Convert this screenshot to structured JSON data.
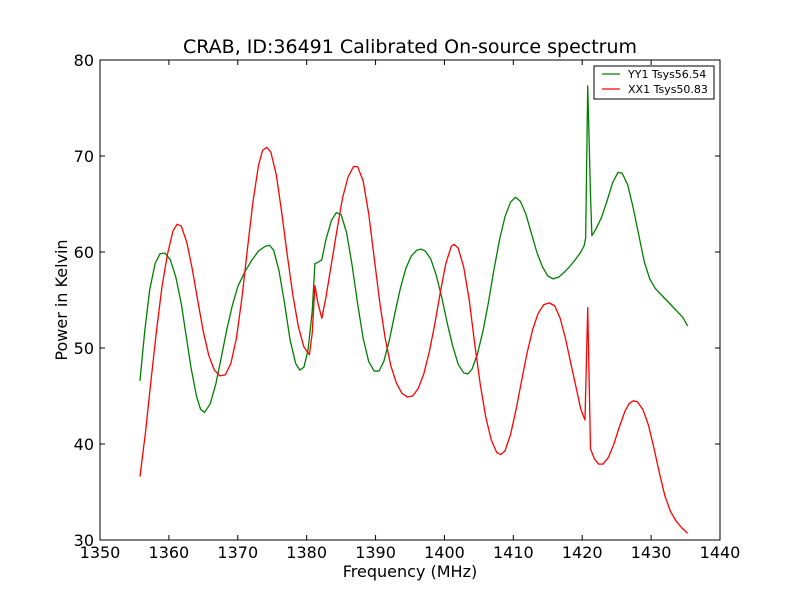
{
  "chart_data": {
    "type": "line",
    "title": "CRAB, ID:36491 Calibrated On-source spectrum",
    "xlabel": "Frequency (MHz)",
    "ylabel": "Power in Kelvin",
    "xlim": [
      1350,
      1440
    ],
    "ylim": [
      30,
      80
    ],
    "xticks": [
      1350,
      1360,
      1370,
      1380,
      1390,
      1400,
      1410,
      1420,
      1430,
      1440
    ],
    "yticks": [
      30,
      40,
      50,
      60,
      70,
      80
    ],
    "xtick_labels": [
      "1350",
      "1360",
      "1370",
      "1380",
      "1390",
      "1400",
      "1410",
      "1420",
      "1430",
      "1440"
    ],
    "ytick_labels": [
      "30",
      "40",
      "50",
      "60",
      "70",
      "80"
    ],
    "grid": false,
    "legend_position": "top-right",
    "series": [
      {
        "name": "YY1 Tsys56.54",
        "color": "#008000",
        "points": [
          [
            1355.8,
            46.6
          ],
          [
            1356.5,
            51.8
          ],
          [
            1357.2,
            56.0
          ],
          [
            1358.0,
            58.8
          ],
          [
            1358.7,
            59.8
          ],
          [
            1359.4,
            59.9
          ],
          [
            1360.2,
            59.2
          ],
          [
            1361.0,
            57.4
          ],
          [
            1361.8,
            54.6
          ],
          [
            1362.5,
            51.3
          ],
          [
            1363.2,
            48.0
          ],
          [
            1364.0,
            45.0
          ],
          [
            1364.6,
            43.6
          ],
          [
            1365.2,
            43.3
          ],
          [
            1366.0,
            44.2
          ],
          [
            1366.8,
            46.2
          ],
          [
            1367.6,
            49.0
          ],
          [
            1368.4,
            51.9
          ],
          [
            1369.2,
            54.4
          ],
          [
            1370.0,
            56.4
          ],
          [
            1371.0,
            57.9
          ],
          [
            1372.0,
            59.1
          ],
          [
            1373.0,
            60.1
          ],
          [
            1374.0,
            60.6
          ],
          [
            1374.6,
            60.7
          ],
          [
            1375.2,
            60.2
          ],
          [
            1376.0,
            58.0
          ],
          [
            1376.8,
            54.6
          ],
          [
            1377.6,
            50.8
          ],
          [
            1378.4,
            48.4
          ],
          [
            1379.0,
            47.7
          ],
          [
            1379.6,
            48.0
          ],
          [
            1380.2,
            49.8
          ],
          [
            1380.8,
            53.8
          ],
          [
            1381.2,
            58.8
          ],
          [
            1381.6,
            58.9
          ],
          [
            1382.2,
            59.2
          ],
          [
            1382.8,
            61.3
          ],
          [
            1383.6,
            63.3
          ],
          [
            1384.3,
            64.1
          ],
          [
            1385.0,
            63.9
          ],
          [
            1385.8,
            62.0
          ],
          [
            1386.6,
            58.6
          ],
          [
            1387.4,
            54.6
          ],
          [
            1388.2,
            51.0
          ],
          [
            1389.0,
            48.6
          ],
          [
            1389.8,
            47.6
          ],
          [
            1390.5,
            47.6
          ],
          [
            1391.2,
            48.6
          ],
          [
            1392.0,
            50.8
          ],
          [
            1392.8,
            53.6
          ],
          [
            1393.6,
            56.2
          ],
          [
            1394.4,
            58.3
          ],
          [
            1395.2,
            59.6
          ],
          [
            1396.0,
            60.2
          ],
          [
            1396.6,
            60.3
          ],
          [
            1397.2,
            60.1
          ],
          [
            1398.0,
            59.3
          ],
          [
            1398.8,
            57.6
          ],
          [
            1399.6,
            55.3
          ],
          [
            1400.4,
            52.6
          ],
          [
            1401.2,
            50.2
          ],
          [
            1402.0,
            48.3
          ],
          [
            1402.8,
            47.4
          ],
          [
            1403.4,
            47.3
          ],
          [
            1404.0,
            47.8
          ],
          [
            1404.8,
            49.4
          ],
          [
            1405.6,
            51.8
          ],
          [
            1406.4,
            54.8
          ],
          [
            1407.2,
            58.2
          ],
          [
            1408.0,
            61.3
          ],
          [
            1408.8,
            63.7
          ],
          [
            1409.6,
            65.2
          ],
          [
            1410.3,
            65.7
          ],
          [
            1411.0,
            65.3
          ],
          [
            1411.8,
            64.0
          ],
          [
            1412.6,
            62.0
          ],
          [
            1413.4,
            60.0
          ],
          [
            1414.2,
            58.5
          ],
          [
            1415.0,
            57.5
          ],
          [
            1415.8,
            57.2
          ],
          [
            1416.6,
            57.4
          ],
          [
            1417.4,
            57.9
          ],
          [
            1418.2,
            58.5
          ],
          [
            1419.0,
            59.2
          ],
          [
            1419.8,
            60.0
          ],
          [
            1420.3,
            60.7
          ],
          [
            1420.5,
            61.5
          ],
          [
            1420.8,
            77.3
          ],
          [
            1421.2,
            66.0
          ],
          [
            1421.4,
            61.7
          ],
          [
            1422.0,
            62.4
          ],
          [
            1422.8,
            63.6
          ],
          [
            1423.6,
            65.3
          ],
          [
            1424.4,
            67.2
          ],
          [
            1425.2,
            68.3
          ],
          [
            1425.8,
            68.2
          ],
          [
            1426.6,
            67.0
          ],
          [
            1427.4,
            64.6
          ],
          [
            1428.2,
            61.8
          ],
          [
            1429.0,
            59.0
          ],
          [
            1429.8,
            57.2
          ],
          [
            1430.6,
            56.2
          ],
          [
            1431.4,
            55.6
          ],
          [
            1432.2,
            55.0
          ],
          [
            1433.0,
            54.4
          ],
          [
            1433.8,
            53.8
          ],
          [
            1434.6,
            53.2
          ],
          [
            1435.3,
            52.3
          ]
        ]
      },
      {
        "name": "XX1 Tsys50.83",
        "color": "#ff0000",
        "points": [
          [
            1355.8,
            36.6
          ],
          [
            1356.6,
            41.2
          ],
          [
            1357.4,
            46.6
          ],
          [
            1358.2,
            51.8
          ],
          [
            1359.0,
            56.4
          ],
          [
            1359.8,
            59.8
          ],
          [
            1360.6,
            62.2
          ],
          [
            1361.2,
            62.9
          ],
          [
            1361.8,
            62.7
          ],
          [
            1362.6,
            61.0
          ],
          [
            1363.4,
            58.2
          ],
          [
            1364.2,
            54.9
          ],
          [
            1365.0,
            51.7
          ],
          [
            1365.8,
            49.2
          ],
          [
            1366.6,
            47.7
          ],
          [
            1367.4,
            47.1
          ],
          [
            1368.2,
            47.2
          ],
          [
            1369.0,
            48.4
          ],
          [
            1369.8,
            51.0
          ],
          [
            1370.6,
            55.2
          ],
          [
            1371.4,
            60.3
          ],
          [
            1372.2,
            65.2
          ],
          [
            1373.0,
            69.0
          ],
          [
            1373.6,
            70.6
          ],
          [
            1374.2,
            70.9
          ],
          [
            1374.8,
            70.4
          ],
          [
            1375.6,
            68.0
          ],
          [
            1376.4,
            64.0
          ],
          [
            1377.2,
            59.6
          ],
          [
            1378.0,
            55.5
          ],
          [
            1378.8,
            52.2
          ],
          [
            1379.6,
            50.1
          ],
          [
            1380.4,
            49.3
          ],
          [
            1380.8,
            51.5
          ],
          [
            1381.2,
            56.5
          ],
          [
            1381.6,
            54.8
          ],
          [
            1382.2,
            53.1
          ],
          [
            1382.8,
            55.3
          ],
          [
            1383.6,
            58.8
          ],
          [
            1384.4,
            62.3
          ],
          [
            1385.2,
            65.6
          ],
          [
            1386.0,
            67.8
          ],
          [
            1386.8,
            68.9
          ],
          [
            1387.4,
            68.9
          ],
          [
            1388.2,
            67.4
          ],
          [
            1389.0,
            64.0
          ],
          [
            1389.8,
            59.4
          ],
          [
            1390.6,
            54.8
          ],
          [
            1391.4,
            51.0
          ],
          [
            1392.2,
            48.2
          ],
          [
            1393.0,
            46.4
          ],
          [
            1393.8,
            45.3
          ],
          [
            1394.6,
            44.9
          ],
          [
            1395.4,
            45.0
          ],
          [
            1396.2,
            45.8
          ],
          [
            1397.0,
            47.3
          ],
          [
            1397.8,
            49.6
          ],
          [
            1398.6,
            52.5
          ],
          [
            1399.4,
            55.8
          ],
          [
            1400.2,
            58.8
          ],
          [
            1401.0,
            60.6
          ],
          [
            1401.4,
            60.8
          ],
          [
            1402.0,
            60.4
          ],
          [
            1402.8,
            58.4
          ],
          [
            1403.6,
            55.0
          ],
          [
            1404.4,
            50.4
          ],
          [
            1405.2,
            46.2
          ],
          [
            1406.0,
            42.8
          ],
          [
            1406.8,
            40.4
          ],
          [
            1407.6,
            39.1
          ],
          [
            1408.2,
            38.9
          ],
          [
            1408.8,
            39.3
          ],
          [
            1409.6,
            41.0
          ],
          [
            1410.4,
            43.6
          ],
          [
            1411.2,
            46.6
          ],
          [
            1412.0,
            49.5
          ],
          [
            1412.8,
            51.9
          ],
          [
            1413.6,
            53.6
          ],
          [
            1414.4,
            54.5
          ],
          [
            1415.2,
            54.7
          ],
          [
            1416.0,
            54.4
          ],
          [
            1416.8,
            53.1
          ],
          [
            1417.6,
            50.9
          ],
          [
            1418.4,
            48.2
          ],
          [
            1419.2,
            45.6
          ],
          [
            1419.8,
            43.6
          ],
          [
            1420.4,
            42.5
          ],
          [
            1420.8,
            54.2
          ],
          [
            1421.2,
            39.5
          ],
          [
            1421.8,
            38.4
          ],
          [
            1422.4,
            37.9
          ],
          [
            1423.0,
            37.9
          ],
          [
            1423.8,
            38.6
          ],
          [
            1424.6,
            40.0
          ],
          [
            1425.4,
            41.8
          ],
          [
            1426.2,
            43.4
          ],
          [
            1426.8,
            44.2
          ],
          [
            1427.4,
            44.5
          ],
          [
            1428.0,
            44.4
          ],
          [
            1428.8,
            43.6
          ],
          [
            1429.6,
            42.0
          ],
          [
            1430.4,
            39.6
          ],
          [
            1431.2,
            37.0
          ],
          [
            1432.0,
            34.6
          ],
          [
            1432.8,
            33.0
          ],
          [
            1433.6,
            32.0
          ],
          [
            1434.4,
            31.3
          ],
          [
            1435.3,
            30.7
          ]
        ]
      }
    ]
  }
}
